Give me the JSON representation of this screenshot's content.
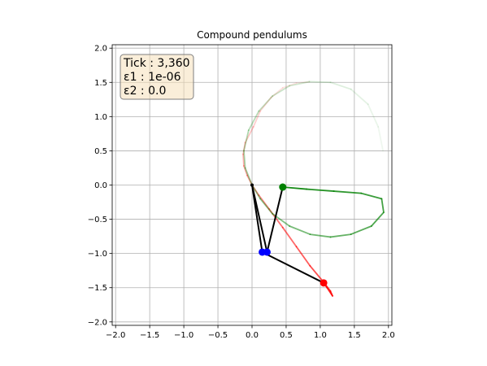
{
  "chart_data": {
    "type": "line",
    "title": "Compound pendulums",
    "xlim": [
      -2.05,
      2.05
    ],
    "ylim": [
      -2.05,
      2.05
    ],
    "grid": true,
    "x_ticks": [
      -2.0,
      -1.5,
      -1.0,
      -0.5,
      0.0,
      0.5,
      1.0,
      1.5,
      2.0
    ],
    "y_ticks": [
      -2.0,
      -1.5,
      -1.0,
      -0.5,
      0.0,
      0.5,
      1.0,
      1.5,
      2.0
    ],
    "x_tick_labels": [
      "−2.0",
      "−1.5",
      "−1.0",
      "−0.5",
      "0.0",
      "0.5",
      "1.0",
      "1.5",
      "2.0"
    ],
    "y_tick_labels": [
      "−2.0",
      "−1.5",
      "−1.0",
      "−0.5",
      "0.0",
      "0.5",
      "1.0",
      "1.5",
      "2.0"
    ],
    "info_box": {
      "lines": [
        "Tick : 3,360",
        "ε1 : 1e-06",
        "ε2 : 0.0"
      ],
      "background": "#f5deb3",
      "border": "#7f7f7f",
      "position": "top-left"
    },
    "pivot": [
      0.0,
      0.0
    ],
    "pendulums": [
      {
        "color": "#ff0000",
        "rod_color": "#000000",
        "joint": [
          0.15,
          -0.98
        ],
        "bob": [
          1.05,
          -1.43
        ],
        "trail": [
          [
            0.84,
            1.51
          ],
          [
            0.65,
            1.49
          ],
          [
            0.45,
            1.42
          ],
          [
            0.28,
            1.28
          ],
          [
            0.12,
            1.08
          ],
          [
            0.02,
            0.85
          ],
          [
            -0.1,
            0.62
          ],
          [
            -0.13,
            0.45
          ],
          [
            -0.12,
            0.28
          ],
          [
            -0.07,
            0.14
          ],
          [
            0.0,
            0.0
          ],
          [
            0.1,
            -0.15
          ],
          [
            0.25,
            -0.35
          ],
          [
            0.45,
            -0.62
          ],
          [
            0.65,
            -0.9
          ],
          [
            0.85,
            -1.18
          ],
          [
            1.05,
            -1.42
          ],
          [
            1.15,
            -1.55
          ],
          [
            1.18,
            -1.62
          ],
          [
            1.1,
            -1.5
          ],
          [
            1.05,
            -1.43
          ]
        ]
      },
      {
        "color": "#008000",
        "rod_color": "#000000",
        "joint": [
          0.22,
          -0.98
        ],
        "bob": [
          0.45,
          -0.03
        ],
        "trail": [
          [
            1.92,
            0.5
          ],
          [
            1.85,
            0.85
          ],
          [
            1.7,
            1.18
          ],
          [
            1.45,
            1.4
          ],
          [
            1.15,
            1.5
          ],
          [
            0.84,
            1.51
          ],
          [
            0.55,
            1.45
          ],
          [
            0.3,
            1.3
          ],
          [
            0.1,
            1.08
          ],
          [
            -0.05,
            0.8
          ],
          [
            -0.12,
            0.5
          ],
          [
            -0.1,
            0.25
          ],
          [
            0.0,
            0.0
          ],
          [
            0.12,
            -0.2
          ],
          [
            0.3,
            -0.42
          ],
          [
            0.55,
            -0.6
          ],
          [
            0.85,
            -0.72
          ],
          [
            1.15,
            -0.76
          ],
          [
            1.45,
            -0.72
          ],
          [
            1.75,
            -0.6
          ],
          [
            1.93,
            -0.4
          ],
          [
            1.9,
            -0.2
          ],
          [
            1.6,
            -0.12
          ],
          [
            1.2,
            -0.09
          ],
          [
            0.8,
            -0.06
          ],
          [
            0.45,
            -0.03
          ]
        ]
      }
    ],
    "joint_color": "#0000ff"
  }
}
